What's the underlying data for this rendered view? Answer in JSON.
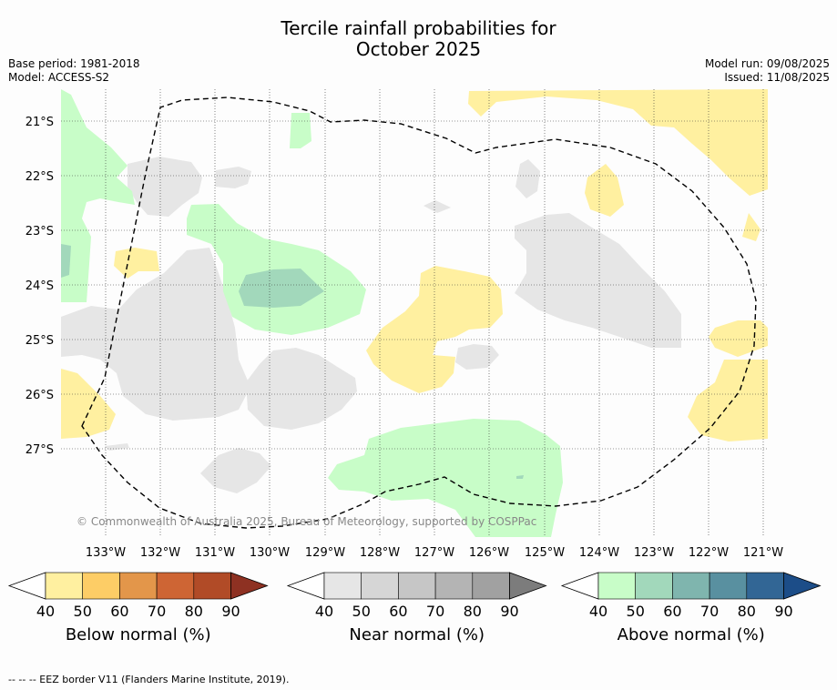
{
  "title_line1": "Tercile rainfall probabilities for",
  "title_line2": "October 2025",
  "base_period": "Base period: 1981-2018",
  "model": "Model: ACCESS-S2",
  "model_run": "Model run: 09/08/2025",
  "issued": "Issued: 11/08/2025",
  "copyright": "© Commonwealth of Australia 2025, Bureau of Meteorology, supported by COSPPac",
  "map": {
    "lat_labels": [
      "21°S",
      "22°S",
      "23°S",
      "24°S",
      "25°S",
      "26°S",
      "27°S"
    ],
    "lon_labels": [
      "133°W",
      "132°W",
      "131°W",
      "130°W",
      "129°W",
      "128°W",
      "127°W",
      "126°W",
      "125°W",
      "124°W",
      "123°W",
      "122°W",
      "121°W"
    ],
    "grid": true,
    "border_style": "dashed"
  },
  "colorbars": [
    {
      "label": "Below normal (%)",
      "ticks": [
        "40",
        "50",
        "60",
        "70",
        "80",
        "90"
      ],
      "colors": [
        "#ffffff",
        "#fff0a0",
        "#fdcd66",
        "#e3964a",
        "#ce6534",
        "#b14b27",
        "#8e3122"
      ]
    },
    {
      "label": "Near normal (%)",
      "ticks": [
        "40",
        "50",
        "60",
        "70",
        "80",
        "90"
      ],
      "colors": [
        "#ffffff",
        "#e6e6e6",
        "#d6d6d6",
        "#c6c6c6",
        "#b4b4b4",
        "#a1a1a1",
        "#7c7c7c"
      ]
    },
    {
      "label": "Above normal (%)",
      "ticks": [
        "40",
        "50",
        "60",
        "70",
        "80",
        "90"
      ],
      "colors": [
        "#ffffff",
        "#c8fdc8",
        "#a2d8bb",
        "#7fb5ae",
        "#5990a0",
        "#326695",
        "#1c4d88"
      ]
    }
  ],
  "footnote": "--  --  -- EEZ border V11 (Flanders Marine Institute, 2019)."
}
